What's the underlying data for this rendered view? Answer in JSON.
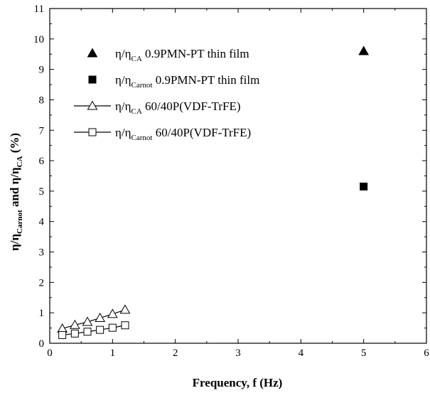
{
  "chart_data": {
    "type": "scatter",
    "xlabel": "Frequency, f (Hz)",
    "ylabel": {
      "eta": "η/η",
      "sub_carnot": "Carnot",
      "and_text": " and ",
      "sub_ca": "CA",
      "unit": " (%)"
    },
    "xlim": [
      0,
      6
    ],
    "ylim": [
      0,
      11
    ],
    "x_ticks": [
      "0",
      "1",
      "2",
      "3",
      "4",
      "5",
      "6"
    ],
    "y_ticks": [
      "0",
      "1",
      "2",
      "3",
      "4",
      "5",
      "6",
      "7",
      "8",
      "9",
      "10",
      "11"
    ],
    "grid": false,
    "legend_position": "top-left",
    "series": [
      {
        "legend_main": "η/η",
        "legend_sub": "CA",
        "legend_rest": " 0.9PMN-PT thin film",
        "marker": "filled-triangle",
        "line": false,
        "x": [
          5
        ],
        "y": [
          9.6
        ]
      },
      {
        "legend_main": "η/η",
        "legend_sub": "Carnot",
        "legend_rest": " 0.9PMN-PT thin film",
        "marker": "filled-square",
        "line": false,
        "x": [
          5
        ],
        "y": [
          5.15
        ]
      },
      {
        "legend_main": "η/η",
        "legend_sub": "CA",
        "legend_rest": " 60/40P(VDF-TrFE)",
        "marker": "open-triangle",
        "line": true,
        "x": [
          0.2,
          0.4,
          0.6,
          0.8,
          1.0,
          1.2
        ],
        "y": [
          0.48,
          0.6,
          0.7,
          0.83,
          0.96,
          1.1
        ]
      },
      {
        "legend_main": "η/η",
        "legend_sub": "Carnot",
        "legend_rest": " 60/40P(VDF-TrFE)",
        "marker": "open-square",
        "line": true,
        "x": [
          0.2,
          0.4,
          0.6,
          0.8,
          1.0,
          1.2
        ],
        "y": [
          0.27,
          0.32,
          0.38,
          0.44,
          0.51,
          0.59
        ]
      }
    ]
  }
}
